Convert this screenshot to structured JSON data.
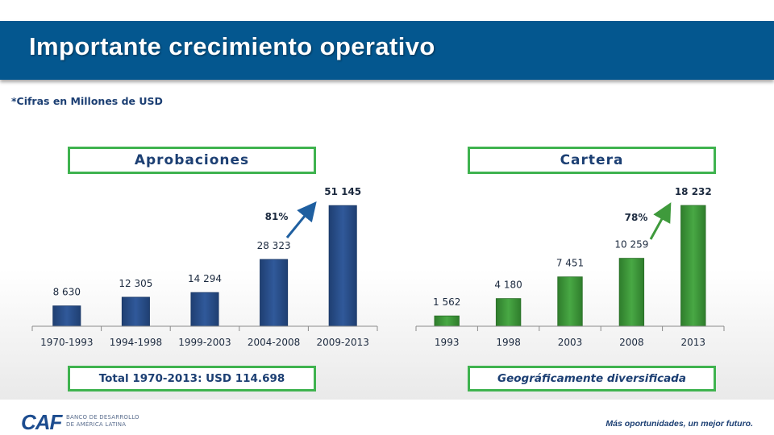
{
  "header": {
    "title": "Importante crecimiento operativo"
  },
  "note": "*Cifras en Millones de USD",
  "footer": {
    "logo": "CAF",
    "logo_line1": "BANCO DE DESARROLLO",
    "logo_line2": "DE AMÉRICA LATINA",
    "tagline": "Más oportunidades, un mejor futuro."
  },
  "colors": {
    "header": "#04578f",
    "blue_bar": "#2a4f89",
    "green_bar": "#3f9a3c",
    "box_border": "#3fb34f",
    "label": "#1c3f73"
  },
  "chart_data": [
    {
      "type": "bar",
      "title": "Aprobaciones",
      "categories": [
        "1970-1993",
        "1994-1998",
        "1999-2003",
        "2004-2008",
        "2009-2013"
      ],
      "values": [
        8630,
        12305,
        14294,
        28323,
        51145
      ],
      "value_labels": [
        "8 630",
        "12 305",
        "14 294",
        "28 323",
        "51 145"
      ],
      "growth_label": "81%",
      "footer_label": "Total 1970-2013: USD 114.698",
      "ylim": [
        0,
        57000
      ]
    },
    {
      "type": "bar",
      "title": "Cartera",
      "categories": [
        "1993",
        "1998",
        "2003",
        "2008",
        "2013"
      ],
      "values": [
        1562,
        4180,
        7451,
        10259,
        18232
      ],
      "value_labels": [
        "1 562",
        "4 180",
        "7 451",
        "10 259",
        "18 232"
      ],
      "growth_label": "78%",
      "footer_label": "Geográficamente diversificada",
      "ylim": [
        0,
        20300
      ]
    }
  ]
}
